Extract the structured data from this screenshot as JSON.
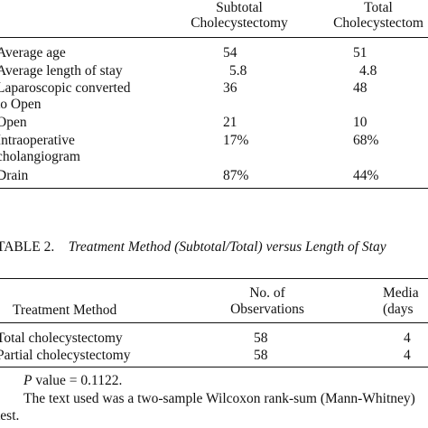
{
  "table1": {
    "header": [
      "",
      "Subtotal\nCholecystectomy",
      "Total\nCholecystectom"
    ],
    "rows": [
      {
        "label": "Average age",
        "subtotal": "54",
        "total": "51"
      },
      {
        "label": "Average length of stay",
        "subtotal": "5.8",
        "total": "4.8"
      },
      {
        "label": "Laparoscopic converted\nto Open",
        "subtotal": "36",
        "total": "48"
      },
      {
        "label": "Open",
        "subtotal": "21",
        "total": "10"
      },
      {
        "label": "Intraoperative\ncholangiogram",
        "subtotal": "17%",
        "total": "68%"
      },
      {
        "label": "Drain",
        "subtotal": "87%",
        "total": "44%"
      }
    ]
  },
  "table2": {
    "caption_label": "TABLE 2.",
    "caption_title": "Treatment Method (Subtotal/Total) versus Length of Stay",
    "header": [
      "Treatment Method",
      "No. of\nObservations",
      "Media\n(days"
    ],
    "rows": [
      {
        "method": "Total cholecystectomy",
        "observations": "58",
        "median": "4"
      },
      {
        "method": "Partial cholecystectomy",
        "observations": "58",
        "median": "4"
      }
    ],
    "footnote_p_label": "P",
    "footnote_p_value": "value = 0.1122.",
    "footnote_test": "The text used was a two-sample Wilcoxon rank-sum (Mann-Whitney) test."
  }
}
